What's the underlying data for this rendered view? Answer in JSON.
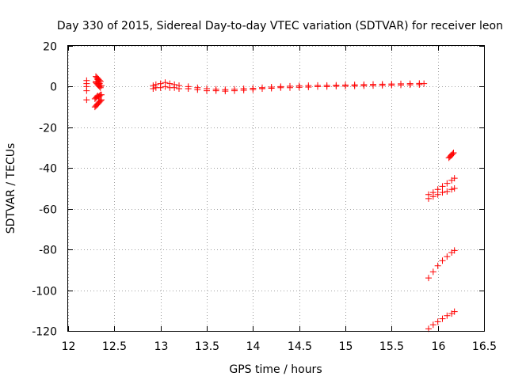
{
  "chart_data": {
    "type": "scatter",
    "title": "Day 330 of 2015, Sidereal Day-to-day VTEC variation (SDTVAR) for receiver leon",
    "xlabel": "GPS time / hours",
    "ylabel": "SDTVAR / TECUs",
    "xlim": [
      12,
      16.5
    ],
    "ylim": [
      -120,
      20
    ],
    "xticks": [
      "12",
      "12.5",
      "13",
      "13.5",
      "14",
      "14.5",
      "15",
      "15.5",
      "16",
      "16.5"
    ],
    "yticks": [
      "20",
      "0",
      "-20",
      "-40",
      "-60",
      "-80",
      "-100",
      "-120"
    ],
    "grid": true,
    "marker": "+",
    "color": "#ff0000",
    "series": [
      {
        "x": [
          12.2,
          12.2,
          12.2,
          12.2,
          12.2
        ],
        "y": [
          3,
          1.5,
          0,
          -2,
          -6.5
        ]
      },
      {
        "x": [
          12.3,
          12.31,
          12.32,
          12.33,
          12.34,
          12.35,
          12.3,
          12.31,
          12.32,
          12.33,
          12.34,
          12.35,
          12.3,
          12.32,
          12.34,
          12.36
        ],
        "y": [
          5,
          4.5,
          4,
          3.5,
          3,
          2.5,
          2,
          1.5,
          1,
          0.5,
          0,
          -0.5,
          2.5,
          3.5,
          1.5,
          0.5
        ]
      },
      {
        "x": [
          12.29,
          12.3,
          12.31,
          12.32,
          12.33,
          12.34,
          12.35,
          12.36
        ],
        "y": [
          -6,
          -5.5,
          -5,
          -4.5,
          -5,
          -4.5,
          -4,
          -4
        ]
      },
      {
        "x": [
          12.29,
          12.3,
          12.31,
          12.32,
          12.33,
          12.34,
          12.35,
          12.36
        ],
        "y": [
          -10,
          -9.5,
          -9,
          -8.5,
          -8,
          -7.5,
          -7,
          -6.5
        ]
      },
      {
        "x": [
          12.92,
          12.95,
          13.0,
          13.05,
          13.1,
          13.15,
          13.2,
          13.3,
          13.4,
          13.5,
          13.6,
          13.7,
          13.8,
          13.9,
          14.0,
          14.1,
          14.2,
          14.3,
          14.4,
          14.5,
          14.6,
          14.7,
          14.8,
          14.9,
          15.0,
          15.1,
          15.2,
          15.3,
          15.4,
          15.5,
          15.6,
          15.7,
          15.8,
          15.85
        ],
        "y": [
          0.5,
          1,
          1.5,
          2,
          1.5,
          1,
          0.5,
          0,
          -0.5,
          -1,
          -1.3,
          -1.5,
          -1.3,
          -1,
          -0.8,
          -0.5,
          -0.2,
          0,
          0.2,
          0.4,
          0.5,
          0.6,
          0.6,
          0.7,
          0.8,
          0.9,
          1,
          1.1,
          1.2,
          1.3,
          1.4,
          1.5,
          1.6,
          1.5
        ]
      },
      {
        "x": [
          12.92,
          12.95,
          13.0,
          13.05,
          13.1,
          13.15,
          13.2,
          13.3,
          13.4,
          13.5,
          13.6,
          13.7,
          13.8,
          13.9,
          14.0,
          14.1,
          14.2,
          14.3,
          14.4,
          14.5,
          14.6,
          14.7,
          14.8,
          14.9,
          15.0,
          15.1,
          15.2,
          15.3,
          15.4,
          15.5,
          15.6,
          15.7,
          15.8
        ],
        "y": [
          -1,
          -0.5,
          -0.5,
          0,
          -0.5,
          -0.5,
          -1,
          -1,
          -1.5,
          -2,
          -2,
          -2.2,
          -2,
          -1.8,
          -1.5,
          -1,
          -0.8,
          -0.5,
          -0.5,
          -0.3,
          -0.2,
          0,
          0,
          0.2,
          0.2,
          0.3,
          0.4,
          0.5,
          0.6,
          0.7,
          0.8,
          0.9,
          1
        ]
      },
      {
        "x": [
          16.12,
          16.13,
          16.14,
          16.15,
          16.16,
          16.17
        ],
        "y": [
          -35,
          -34.5,
          -34,
          -33.5,
          -33,
          -32.5
        ]
      },
      {
        "x": [
          15.9,
          15.95,
          16.0,
          16.05,
          16.1,
          16.15,
          16.18
        ],
        "y": [
          -53,
          -52,
          -50.5,
          -49,
          -47.5,
          -46,
          -45
        ]
      },
      {
        "x": [
          15.9,
          15.95,
          16.0,
          16.05,
          16.1,
          16.15,
          16.18
        ],
        "y": [
          -55,
          -54,
          -53,
          -52,
          -51.5,
          -50.5,
          -50
        ]
      },
      {
        "x": [
          15.9,
          15.95,
          16.0,
          16.05,
          16.1,
          16.15,
          16.18
        ],
        "y": [
          -94,
          -91,
          -88,
          -85.5,
          -83.5,
          -81.5,
          -80.5
        ]
      },
      {
        "x": [
          15.9,
          15.95,
          16.0,
          16.05,
          16.1,
          16.15,
          16.18
        ],
        "y": [
          -119,
          -117,
          -115.5,
          -114,
          -112.5,
          -111.5,
          -110.5
        ]
      }
    ]
  }
}
